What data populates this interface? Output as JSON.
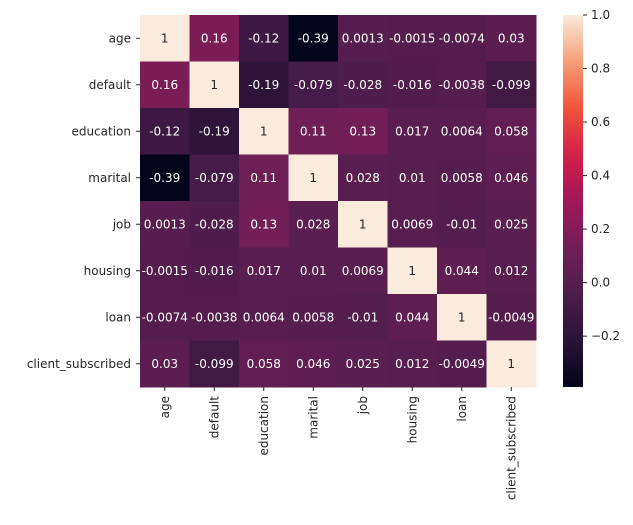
{
  "chart_data": {
    "type": "heatmap",
    "title": "",
    "xlabel": "",
    "ylabel": "",
    "row_labels": [
      "age",
      "default",
      "education",
      "marital",
      "job",
      "housing",
      "loan",
      "client_subscribed"
    ],
    "col_labels": [
      "age",
      "default",
      "education",
      "marital",
      "job",
      "housing",
      "loan",
      "client_subscribed"
    ],
    "value_labels": [
      [
        "1",
        "0.16",
        "-0.12",
        "-0.39",
        "0.0013",
        "-0.0015",
        "-0.0074",
        "0.03"
      ],
      [
        "0.16",
        "1",
        "-0.19",
        "-0.079",
        "-0.028",
        "-0.016",
        "-0.0038",
        "-0.099"
      ],
      [
        "-0.12",
        "-0.19",
        "1",
        "0.11",
        "0.13",
        "0.017",
        "0.0064",
        "0.058"
      ],
      [
        "-0.39",
        "-0.079",
        "0.11",
        "1",
        "0.028",
        "0.01",
        "0.0058",
        "0.046"
      ],
      [
        "0.0013",
        "-0.028",
        "0.13",
        "0.028",
        "1",
        "0.0069",
        "-0.01",
        "0.025"
      ],
      [
        "-0.0015",
        "-0.016",
        "0.017",
        "0.01",
        "0.0069",
        "1",
        "0.044",
        "0.012"
      ],
      [
        "-0.0074",
        "-0.0038",
        "0.0064",
        "0.0058",
        "-0.01",
        "0.044",
        "1",
        "-0.0049"
      ],
      [
        "0.03",
        "-0.099",
        "0.058",
        "0.046",
        "0.025",
        "0.012",
        "-0.0049",
        "1"
      ]
    ],
    "colorbar": {
      "vmin": -0.39,
      "vmax": 1.0,
      "ticks": [
        -0.2,
        0.0,
        0.2,
        0.4,
        0.6,
        0.8,
        1.0
      ],
      "tick_labels": [
        "−0.2",
        "0.0",
        "0.2",
        "0.4",
        "0.6",
        "0.8",
        "1.0"
      ],
      "colormap": "rocket"
    },
    "legend": "colorbar-right",
    "grid": false
  }
}
